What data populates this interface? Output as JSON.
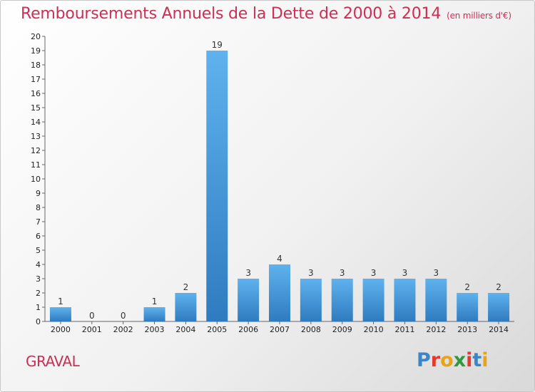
{
  "title": "Remboursements Annuels de la Dette de 2000 à 2014",
  "unit_note": "(en milliers d'€)",
  "commune": "GRAVAL",
  "logo": {
    "text": "Proxiti",
    "letter_colors": [
      "#3a86c8",
      "#e23a2e",
      "#e8a317",
      "#2f9a3d",
      "#e23a2e",
      "#3a86c8",
      "#e8a317"
    ]
  },
  "colors": {
    "title": "#cc2e55",
    "bar_light": "#5fb2ee",
    "bar_dark": "#2f7bbf"
  },
  "chart_data": {
    "type": "bar",
    "categories": [
      "2000",
      "2001",
      "2002",
      "2003",
      "2004",
      "2005",
      "2006",
      "2007",
      "2008",
      "2009",
      "2010",
      "2011",
      "2012",
      "2013",
      "2014"
    ],
    "values": [
      1,
      0,
      0,
      1,
      2,
      19,
      3,
      4,
      3,
      3,
      3,
      3,
      3,
      2,
      2
    ],
    "ylim": [
      0,
      20
    ],
    "yticks": [
      0,
      1,
      2,
      3,
      4,
      5,
      6,
      7,
      8,
      9,
      10,
      11,
      12,
      13,
      14,
      15,
      16,
      17,
      18,
      19,
      20
    ],
    "grid": false,
    "data_labels": true
  }
}
